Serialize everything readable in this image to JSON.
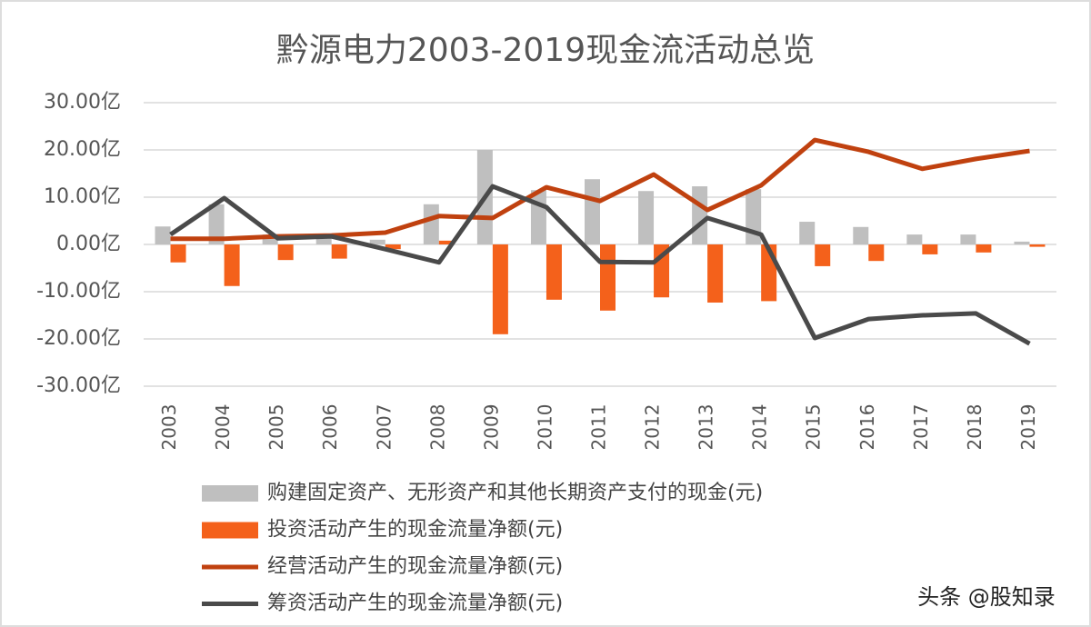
{
  "chart_data": {
    "type": "combo",
    "title": "黔源电力2003-2019现金流活动总览",
    "categories": [
      "2003",
      "2004",
      "2005",
      "2006",
      "2007",
      "2008",
      "2009",
      "2010",
      "2011",
      "2012",
      "2013",
      "2014",
      "2015",
      "2016",
      "2017",
      "2018",
      "2019"
    ],
    "series": [
      {
        "name": "购建固定资产、无形资产和其他长期资产支付的现金(元)",
        "type": "bar",
        "color": "#bfbfbf",
        "values": [
          3.8,
          8.5,
          2.1,
          2.0,
          1.0,
          8.5,
          20.0,
          11.5,
          13.8,
          11.3,
          12.3,
          11.7,
          4.8,
          3.7,
          2.1,
          2.1,
          0.6
        ]
      },
      {
        "name": "投资活动产生的现金流量净额(元)",
        "type": "bar",
        "color": "#f4611b",
        "values": [
          -3.8,
          -8.8,
          -3.3,
          -3.0,
          -1.0,
          0.8,
          -19.0,
          -11.7,
          -14.0,
          -11.2,
          -12.3,
          -12.0,
          -4.6,
          -3.5,
          -2.1,
          -1.7,
          -0.5
        ]
      },
      {
        "name": "经营活动产生的现金流量净额(元)",
        "type": "line",
        "color": "#c0410f",
        "values": [
          1.2,
          1.2,
          1.7,
          1.9,
          2.5,
          6.0,
          5.6,
          12.1,
          9.2,
          14.8,
          7.3,
          12.5,
          22.1,
          19.6,
          16.0,
          18.1,
          19.8
        ]
      },
      {
        "name": "筹资活动产生的现金流量净额(元)",
        "type": "line",
        "color": "#4a4a4a",
        "values": [
          2.1,
          9.8,
          1.3,
          1.7,
          -1.0,
          -3.8,
          12.3,
          7.9,
          -3.7,
          -3.8,
          5.6,
          2.1,
          -19.8,
          -15.8,
          -15.0,
          -14.6,
          -21.0
        ]
      }
    ],
    "ylim": [
      -30,
      30
    ],
    "yticks": [
      {
        "value": -30,
        "label": "-30.00亿"
      },
      {
        "value": -20,
        "label": "-20.00亿"
      },
      {
        "value": -10,
        "label": "-10.00亿"
      },
      {
        "value": 0,
        "label": "0.00亿"
      },
      {
        "value": 10,
        "label": "10.00亿"
      },
      {
        "value": 20,
        "label": "20.00亿"
      },
      {
        "value": 30,
        "label": "30.00亿"
      }
    ],
    "grid": true,
    "legend": "bottom",
    "watermark": "头条 @股知录"
  }
}
